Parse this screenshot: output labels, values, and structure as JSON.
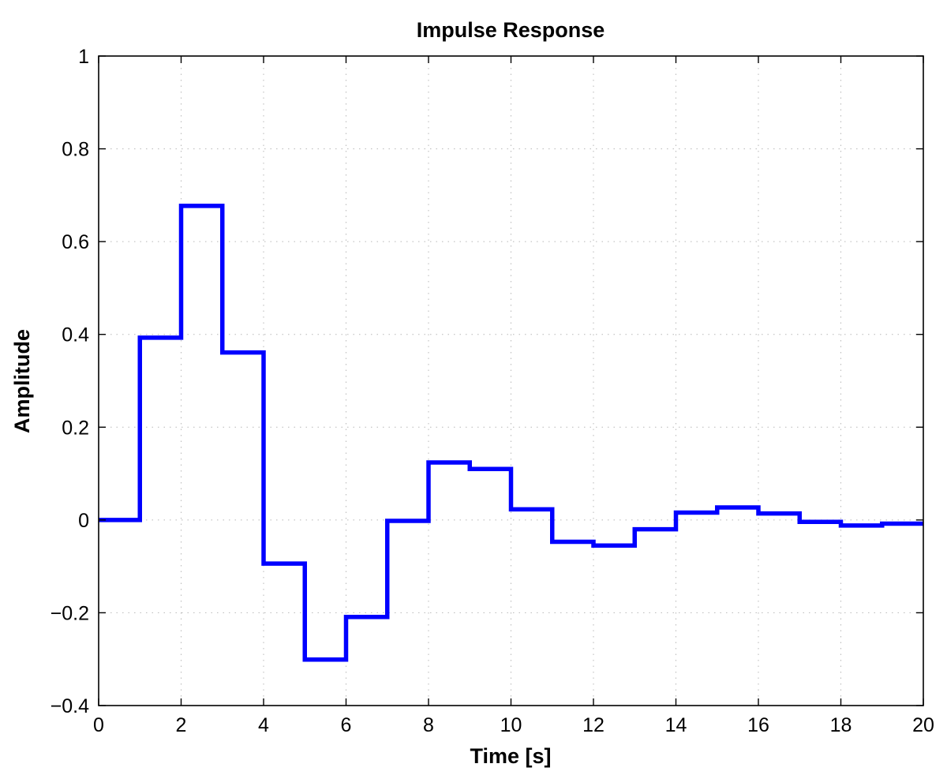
{
  "chart_data": {
    "type": "line",
    "step": "post",
    "title": "Impulse Response",
    "xlabel": "Time [s]",
    "ylabel": "Amplitude",
    "xlim": [
      0,
      20
    ],
    "ylim": [
      -0.4,
      1
    ],
    "xticks": [
      0,
      2,
      4,
      6,
      8,
      10,
      12,
      14,
      16,
      18,
      20
    ],
    "yticks": [
      -0.4,
      -0.2,
      0,
      0.2,
      0.4,
      0.6,
      0.8,
      1
    ],
    "xtick_labels": [
      "0",
      "2",
      "4",
      "6",
      "8",
      "10",
      "12",
      "14",
      "16",
      "18",
      "20"
    ],
    "ytick_labels": [
      "−0.4",
      "−0.2",
      "0",
      "0.2",
      "0.4",
      "0.6",
      "0.8",
      "1"
    ],
    "grid": true,
    "line_color": "#0000ff",
    "series": [
      {
        "x": [
          0,
          1,
          2,
          3,
          4,
          5,
          6,
          7,
          8,
          9,
          10,
          11,
          12,
          13,
          14,
          15,
          16,
          17,
          18,
          19,
          20
        ],
        "values": [
          0,
          0.393,
          0.677,
          0.361,
          -0.094,
          -0.301,
          -0.209,
          -0.002,
          0.124,
          0.11,
          0.023,
          -0.047,
          -0.055,
          -0.02,
          0.016,
          0.027,
          0.014,
          -0.004,
          -0.012,
          -0.008,
          -0.008
        ]
      }
    ]
  }
}
